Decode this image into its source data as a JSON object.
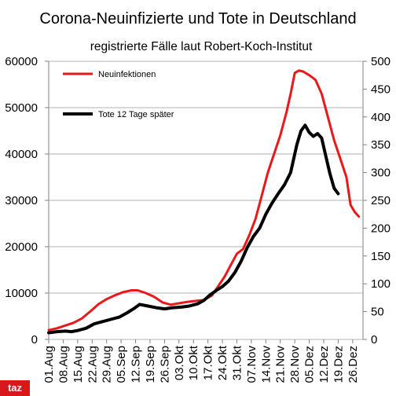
{
  "chart_data": {
    "type": "line",
    "title": "Corona-Neuinfizierte und Tote in Deutschland",
    "subtitle": "registrierte Fälle laut Robert-Koch-Institut",
    "x_start": "01.Aug",
    "x_end": "31.Dez",
    "x_ticks": [
      "01.Aug",
      "08.Aug",
      "15.Aug",
      "22.Aug",
      "29.Aug",
      "05.Sep",
      "12.Sep",
      "19.Sep",
      "26.Sep",
      "03.Okt",
      "10.Okt",
      "17.Okt",
      "24.Okt",
      "31.Okt",
      "07.Nov",
      "14.Nov",
      "21.Nov",
      "28.Nov",
      "05.Dez",
      "12.Dez",
      "19.Dez",
      "26.Dez"
    ],
    "y_left_ticks": [
      "0",
      "10000",
      "20000",
      "30000",
      "40000",
      "50000",
      "60000"
    ],
    "y_right_ticks": [
      "0",
      "50",
      "100",
      "150",
      "200",
      "250",
      "300",
      "350",
      "400",
      "450",
      "500"
    ],
    "y_left_lim": [
      0,
      60000
    ],
    "y_right_lim": [
      0,
      500
    ],
    "grid": true,
    "legend_position": "top-left",
    "series": [
      {
        "name": "Neuinfektionen",
        "axis": "left",
        "color": "#e8181b",
        "points": [
          [
            "01.Aug",
            2000
          ],
          [
            "05.Aug",
            2400
          ],
          [
            "09.Aug",
            3000
          ],
          [
            "13.Aug",
            3600
          ],
          [
            "17.Aug",
            4500
          ],
          [
            "21.Aug",
            6000
          ],
          [
            "25.Aug",
            7600
          ],
          [
            "29.Aug",
            8700
          ],
          [
            "02.Sep",
            9500
          ],
          [
            "06.Sep",
            10200
          ],
          [
            "10.Sep",
            10600
          ],
          [
            "13.Sep",
            10600
          ],
          [
            "17.Sep",
            10000
          ],
          [
            "21.Sep",
            9200
          ],
          [
            "25.Sep",
            8000
          ],
          [
            "29.Sep",
            7500
          ],
          [
            "03.Okt",
            7800
          ],
          [
            "07.Okt",
            8100
          ],
          [
            "11.Okt",
            8300
          ],
          [
            "15.Okt",
            8500
          ],
          [
            "19.Okt",
            9500
          ],
          [
            "22.Okt",
            11500
          ],
          [
            "25.Okt",
            13500
          ],
          [
            "28.Okt",
            16000
          ],
          [
            "31.Okt",
            18500
          ],
          [
            "03.Nov",
            19500
          ],
          [
            "06.Nov",
            22500
          ],
          [
            "09.Nov",
            26000
          ],
          [
            "12.Nov",
            31000
          ],
          [
            "15.Nov",
            36000
          ],
          [
            "18.Nov",
            40000
          ],
          [
            "21.Nov",
            44000
          ],
          [
            "24.Nov",
            49000
          ],
          [
            "26.Nov",
            53000
          ],
          [
            "28.Nov",
            57500
          ],
          [
            "30.Nov",
            58000
          ],
          [
            "02.Dez",
            57800
          ],
          [
            "05.Dez",
            57000
          ],
          [
            "08.Dez",
            56000
          ],
          [
            "11.Dez",
            53000
          ],
          [
            "14.Dez",
            48000
          ],
          [
            "17.Dez",
            43000
          ],
          [
            "20.Dez",
            39000
          ],
          [
            "23.Dez",
            35000
          ],
          [
            "25.Dez",
            29000
          ],
          [
            "27.Dez",
            27500
          ],
          [
            "29.Dez",
            26500
          ]
        ]
      },
      {
        "name": "Tote 12 Tage später",
        "axis": "right",
        "color": "#000000",
        "points": [
          [
            "01.Aug",
            12
          ],
          [
            "05.Aug",
            14
          ],
          [
            "09.Aug",
            15
          ],
          [
            "12.Aug",
            14
          ],
          [
            "15.Aug",
            16
          ],
          [
            "19.Aug",
            20
          ],
          [
            "23.Aug",
            28
          ],
          [
            "27.Aug",
            32
          ],
          [
            "31.Aug",
            36
          ],
          [
            "04.Sep",
            40
          ],
          [
            "08.Sep",
            48
          ],
          [
            "11.Sep",
            55
          ],
          [
            "14.Sep",
            63
          ],
          [
            "18.Sep",
            60
          ],
          [
            "22.Sep",
            57
          ],
          [
            "26.Sep",
            55
          ],
          [
            "30.Sep",
            57
          ],
          [
            "04.Okt",
            58
          ],
          [
            "08.Okt",
            60
          ],
          [
            "12.Okt",
            64
          ],
          [
            "15.Okt",
            70
          ],
          [
            "18.Okt",
            80
          ],
          [
            "21.Okt",
            88
          ],
          [
            "24.Okt",
            95
          ],
          [
            "27.Okt",
            105
          ],
          [
            "30.Okt",
            120
          ],
          [
            "02.Nov",
            140
          ],
          [
            "05.Nov",
            165
          ],
          [
            "08.Nov",
            185
          ],
          [
            "11.Nov",
            200
          ],
          [
            "14.Nov",
            225
          ],
          [
            "17.Nov",
            245
          ],
          [
            "20.Nov",
            262
          ],
          [
            "23.Nov",
            278
          ],
          [
            "26.Nov",
            300
          ],
          [
            "29.Nov",
            350
          ],
          [
            "01.Dez",
            375
          ],
          [
            "03.Dez",
            385
          ],
          [
            "05.Dez",
            372
          ],
          [
            "07.Dez",
            365
          ],
          [
            "09.Dez",
            370
          ],
          [
            "11.Dez",
            362
          ],
          [
            "13.Dez",
            330
          ],
          [
            "15.Dez",
            298
          ],
          [
            "17.Dez",
            272
          ],
          [
            "19.Dez",
            262
          ]
        ]
      }
    ]
  },
  "brand": {
    "logo_text": "taz",
    "color": "#d7191c"
  }
}
